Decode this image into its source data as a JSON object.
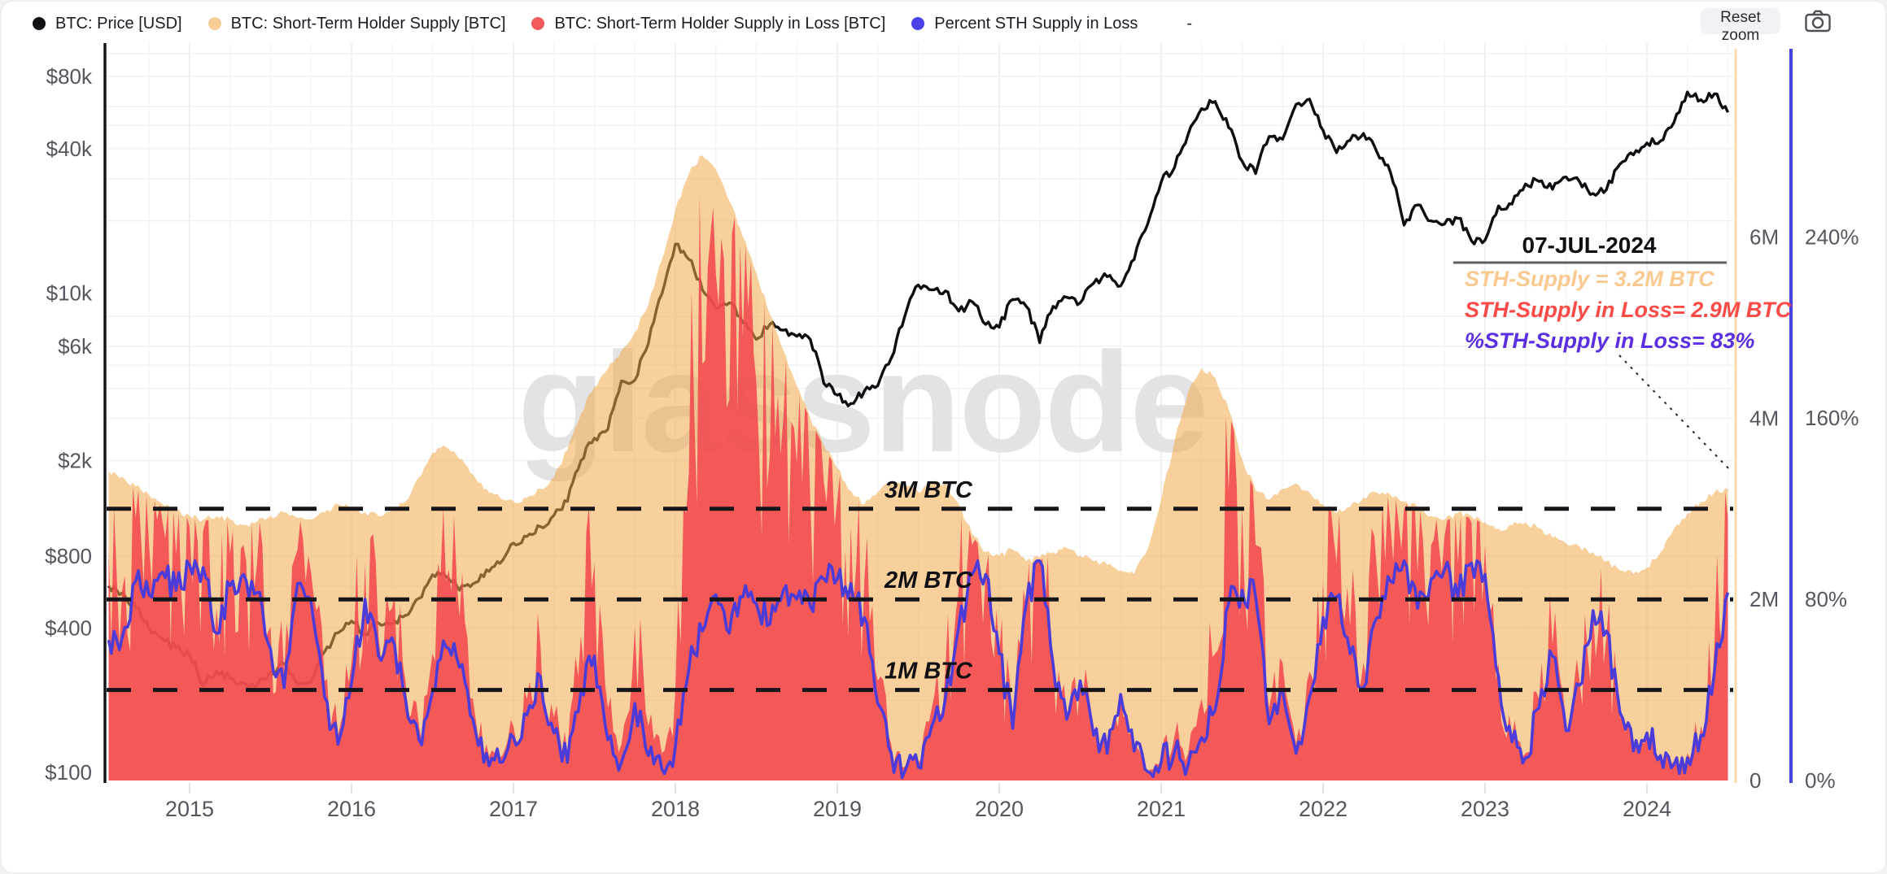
{
  "toolbar": {
    "reset_zoom_label": "Reset zoom"
  },
  "legend": {
    "separator": "-",
    "items": [
      {
        "label": "BTC: Price [USD]",
        "color": "#101016"
      },
      {
        "label": "BTC: Short-Term Holder Supply [BTC]",
        "color": "#f8cd96"
      },
      {
        "label": "BTC: Short-Term Holder Supply in Loss [BTC]",
        "color": "#f4595b"
      },
      {
        "label": "Percent STH Supply in Loss",
        "color": "#4a41e8"
      }
    ]
  },
  "watermark": "glassnode",
  "chart_data": {
    "type": "mixed-line-area",
    "x_unit": "decimal_year",
    "x_start": 2014.5,
    "x_step": 0.0833333,
    "x_ticks": [
      "2015",
      "2016",
      "2017",
      "2018",
      "2019",
      "2020",
      "2021",
      "2022",
      "2023",
      "2024"
    ],
    "axes": {
      "left_price_log": {
        "ticks": [
          {
            "label": "$80k",
            "value": 80000
          },
          {
            "label": "$40k",
            "value": 40000
          },
          {
            "label": "$10k",
            "value": 10000
          },
          {
            "label": "$6k",
            "value": 6000
          },
          {
            "label": "$2k",
            "value": 2000
          },
          {
            "label": "$800",
            "value": 800
          },
          {
            "label": "$400",
            "value": 400
          },
          {
            "label": "$100",
            "value": 100
          }
        ]
      },
      "right_supply": {
        "axis_color": "#fbd9a9",
        "ticks": [
          {
            "label": "6M",
            "value": 6
          },
          {
            "label": "4M",
            "value": 4
          },
          {
            "label": "2M",
            "value": 2
          },
          {
            "label": "0",
            "value": 0
          }
        ]
      },
      "right_percent": {
        "axis_color": "#4741e0",
        "ticks": [
          {
            "label": "240%",
            "value": 240
          },
          {
            "label": "160%",
            "value": 160
          },
          {
            "label": "80%",
            "value": 80
          },
          {
            "label": "0%",
            "value": 0
          }
        ]
      }
    },
    "ref_lines": [
      {
        "label": "1M BTC",
        "value": 1
      },
      {
        "label": "2M BTC",
        "value": 2
      },
      {
        "label": "3M BTC",
        "value": 3
      }
    ],
    "annotation": {
      "date": "07-JUL-2024",
      "lines": [
        {
          "text": "STH-Supply = 3.2M BTC",
          "color": "#fac98f"
        },
        {
          "text": "STH-Supply in Loss= 2.9M BTC",
          "color": "#fa4b49"
        },
        {
          "text": "%STH-Supply in Loss= 83%",
          "color": "#5b2fe0"
        }
      ]
    },
    "series": {
      "price": {
        "name": "BTC: Price [USD]",
        "color": "#0d0d12",
        "scale": "log-usd-left",
        "values": [
          600,
          560,
          490,
          395,
          360,
          330,
          310,
          230,
          265,
          247,
          236,
          230,
          262,
          284,
          232,
          238,
          318,
          382,
          428,
          378,
          420,
          416,
          452,
          532,
          668,
          655,
          575,
          612,
          700,
          745,
          905,
          965,
          1060,
          1180,
          1350,
          2000,
          2480,
          2700,
          4300,
          4330,
          6150,
          9900,
          16000,
          13800,
          10300,
          8600,
          9100,
          7500,
          6400,
          7400,
          7000,
          6600,
          6400,
          4200,
          3750,
          3460,
          3900,
          4100,
          5350,
          8000,
          10800,
          10300,
          10200,
          8400,
          9200,
          7400,
          7200,
          9400,
          8800,
          6200,
          8800,
          9600,
          9100,
          11000,
          11700,
          10700,
          13800,
          19400,
          29000,
          33500,
          46000,
          58800,
          63000,
          49000,
          35500,
          31500,
          45000,
          43800,
          61300,
          64400,
          47700,
          38500,
          43400,
          46300,
          38600,
          31800,
          19200,
          23300,
          20000,
          19400,
          20500,
          16500,
          16600,
          23100,
          23500,
          28500,
          29200,
          27100,
          30500,
          29200,
          26000,
          27000,
          34500,
          37700,
          42300,
          43100,
          51500,
          69000,
          64000,
          67800,
          56700
        ]
      },
      "sth_supply": {
        "name": "BTC: Short-Term Holder Supply [BTC]",
        "fill": "#f3a94a",
        "fill_alpha": 0.55,
        "unit": "M BTC",
        "values": [
          3.42,
          3.35,
          3.25,
          3.15,
          3.05,
          2.98,
          2.92,
          2.88,
          2.92,
          2.88,
          2.82,
          2.86,
          2.92,
          2.96,
          2.9,
          2.88,
          2.96,
          3.05,
          3.02,
          2.96,
          2.92,
          2.98,
          3.08,
          3.35,
          3.62,
          3.68,
          3.55,
          3.38,
          3.22,
          3.12,
          3.08,
          3.12,
          3.22,
          3.35,
          3.65,
          4.05,
          4.35,
          4.55,
          4.75,
          4.95,
          5.25,
          5.75,
          6.3,
          6.7,
          6.9,
          6.75,
          6.4,
          6.0,
          5.6,
          5.15,
          4.75,
          4.35,
          4.0,
          3.7,
          3.45,
          3.2,
          3.05,
          3.18,
          3.3,
          3.25,
          3.18,
          3.3,
          3.28,
          3.05,
          2.72,
          2.52,
          2.48,
          2.55,
          2.42,
          2.46,
          2.52,
          2.57,
          2.48,
          2.42,
          2.38,
          2.32,
          2.28,
          2.55,
          3.1,
          3.75,
          4.3,
          4.55,
          4.45,
          4.1,
          3.55,
          3.2,
          3.1,
          3.22,
          3.28,
          3.18,
          3.05,
          2.95,
          3.02,
          3.12,
          3.18,
          3.15,
          3.08,
          3.02,
          2.92,
          2.88,
          2.95,
          2.92,
          2.85,
          2.78,
          2.82,
          2.85,
          2.78,
          2.68,
          2.62,
          2.58,
          2.52,
          2.42,
          2.32,
          2.28,
          2.35,
          2.52,
          2.78,
          2.95,
          3.08,
          3.18,
          3.22
        ]
      },
      "sth_supply_loss": {
        "name": "BTC: Short-Term Holder Supply in Loss [BTC]",
        "fill": "#f2484e",
        "fill_alpha": 0.88,
        "unit": "M BTC",
        "values": [
          2.6,
          2.1,
          2.9,
          2.6,
          2.85,
          2.5,
          2.8,
          2.75,
          1.9,
          2.5,
          2.6,
          2.4,
          1.7,
          1.2,
          2.55,
          2.3,
          1.1,
          0.5,
          1.3,
          2.4,
          1.6,
          1.9,
          1.1,
          0.6,
          1.4,
          2.2,
          1.8,
          0.9,
          0.4,
          0.25,
          0.6,
          0.9,
          1.5,
          0.7,
          0.3,
          1.6,
          2.4,
          0.8,
          0.4,
          1.7,
          0.6,
          0.3,
          1.0,
          3.4,
          4.6,
          5.6,
          4.2,
          4.9,
          4.4,
          3.6,
          4.0,
          3.5,
          3.1,
          3.3,
          3.1,
          2.8,
          2.2,
          1.1,
          0.4,
          0.15,
          0.2,
          0.8,
          1.2,
          2.1,
          2.6,
          2.3,
          1.4,
          0.6,
          1.9,
          2.4,
          1.3,
          0.7,
          1.1,
          0.5,
          0.3,
          0.9,
          0.3,
          0.1,
          0.25,
          0.5,
          0.3,
          0.9,
          1.4,
          3.2,
          3.0,
          2.6,
          0.8,
          1.3,
          0.4,
          1.2,
          2.2,
          2.4,
          1.7,
          1.3,
          2.3,
          2.8,
          3.0,
          2.3,
          2.6,
          2.7,
          2.4,
          2.85,
          2.6,
          1.3,
          0.5,
          0.3,
          0.9,
          1.5,
          0.6,
          1.1,
          1.9,
          1.6,
          0.7,
          0.3,
          0.5,
          0.3,
          0.2,
          0.3,
          0.6,
          1.5,
          2.9
        ]
      },
      "pct_sth_loss": {
        "name": "Percent STH Supply in Loss",
        "color": "#4b3cd9",
        "unit": "%",
        "values": [
          62,
          63,
          88,
          82,
          92,
          84,
          95,
          94,
          65,
          86,
          91,
          83,
          58,
          41,
          87,
          79,
          37,
          16,
          43,
          80,
          55,
          63,
          36,
          18,
          39,
          59,
          50,
          27,
          12,
          8,
          19,
          29,
          46,
          21,
          8,
          39,
          55,
          18,
          8,
          34,
          11,
          5,
          15,
          49,
          66,
          82,
          65,
          81,
          78,
          69,
          84,
          80,
          77,
          89,
          89,
          87,
          72,
          34,
          12,
          4,
          6,
          24,
          36,
          68,
          91,
          91,
          56,
          23,
          78,
          97,
          51,
          27,
          44,
          20,
          12,
          38,
          13,
          4,
          8,
          13,
          7,
          19,
          31,
          78,
          84,
          81,
          25,
          40,
          12,
          37,
          72,
          81,
          56,
          41,
          72,
          88,
          97,
          76,
          89,
          93,
          81,
          96,
          91,
          46,
          17,
          10,
          32,
          55,
          22,
          42,
          75,
          66,
          30,
          13,
          21,
          11,
          7,
          10,
          20,
          48,
          83
        ]
      }
    }
  }
}
